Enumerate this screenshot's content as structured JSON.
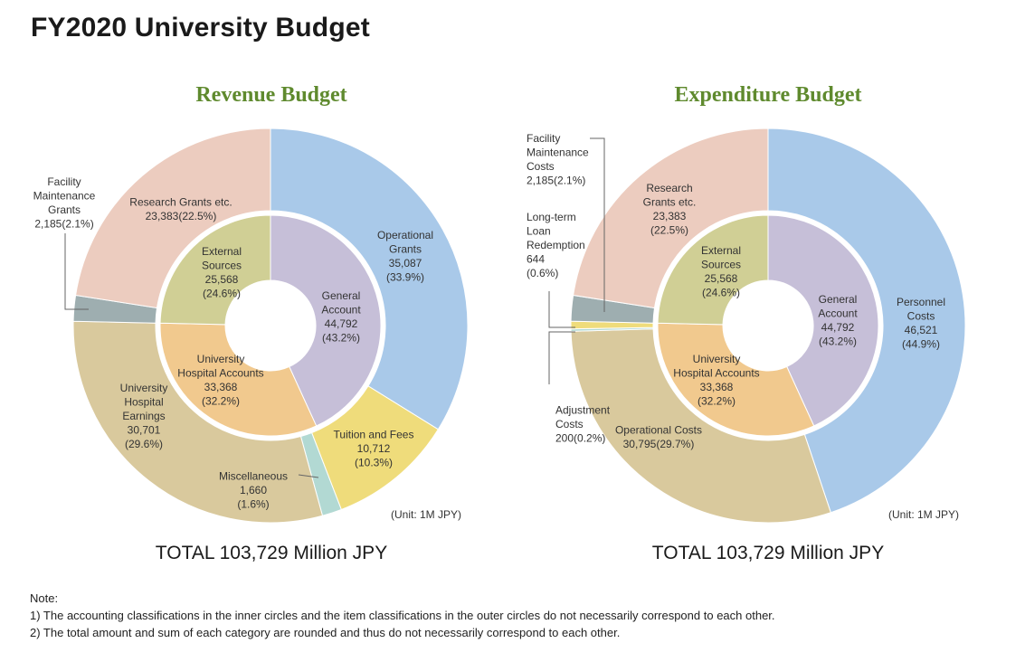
{
  "title": "FY2020 University Budget",
  "unit_label": "(Unit: 1M JPY)",
  "colors": {
    "title_green": "#5f8a2e",
    "outer_blue": "#a9c9e9",
    "outer_pink": "#ecccbf",
    "outer_grey": "#9eaeb0",
    "outer_tan": "#d9c99d",
    "outer_mint": "#b2d9d3",
    "outer_yellow": "#efdc7b",
    "inner_lavender": "#c6bfd8",
    "inner_green": "#d0cf95",
    "inner_orange": "#f1c98e"
  },
  "chart_data": [
    {
      "type": "pie",
      "title": "Revenue Budget",
      "total_label": "TOTAL 103,729 Million JPY",
      "outer_ring": [
        {
          "label": "Operational Grants",
          "value": 35087,
          "percent": 33.9,
          "lines": [
            "Operational",
            "Grants",
            "35,087",
            "(33.9%)"
          ]
        },
        {
          "label": "Tuition and Fees",
          "value": 10712,
          "percent": 10.3,
          "lines": [
            "Tuition and Fees",
            "10,712",
            "(10.3%)"
          ]
        },
        {
          "label": "Miscellaneous",
          "value": 1660,
          "percent": 1.6,
          "lines": [
            "Miscellaneous",
            "1,660",
            "(1.6%)"
          ]
        },
        {
          "label": "University Hospital Earnings",
          "value": 30701,
          "percent": 29.6,
          "lines": [
            "University",
            "Hospital",
            "Earnings",
            "30,701",
            "(29.6%)"
          ]
        },
        {
          "label": "Facility Maintenance Grants",
          "value": 2185,
          "percent": 2.1,
          "lines": [
            "Facility",
            "Maintenance",
            "Grants",
            "2,185(2.1%)"
          ]
        },
        {
          "label": "Research Grants etc.",
          "value": 23383,
          "percent": 22.5,
          "lines": [
            "Research Grants etc.",
            "23,383(22.5%)"
          ]
        }
      ],
      "inner_ring": [
        {
          "label": "General Account",
          "value": 44792,
          "percent": 43.2,
          "lines": [
            "General",
            "Account",
            "44,792",
            "(43.2%)"
          ]
        },
        {
          "label": "University Hospital Accounts",
          "value": 33368,
          "percent": 32.2,
          "lines": [
            "University",
            "Hospital Accounts",
            "33,368",
            "(32.2%)"
          ]
        },
        {
          "label": "External Sources",
          "value": 25568,
          "percent": 24.6,
          "lines": [
            "External",
            "Sources",
            "25,568",
            "(24.6%)"
          ]
        }
      ]
    },
    {
      "type": "pie",
      "title": "Expenditure Budget",
      "total_label": "TOTAL 103,729 Million JPY",
      "outer_ring": [
        {
          "label": "Personnel Costs",
          "value": 46521,
          "percent": 44.9,
          "lines": [
            "Personnel",
            "Costs",
            "46,521",
            "(44.9%)"
          ]
        },
        {
          "label": "Operational Costs",
          "value": 30795,
          "percent": 29.7,
          "lines": [
            "Operational Costs",
            "30,795(29.7%)"
          ]
        },
        {
          "label": "Adjustment Costs",
          "value": 200,
          "percent": 0.2,
          "lines": [
            "Adjustment",
            "Costs",
            "200(0.2%)"
          ]
        },
        {
          "label": "Long-term Loan Redemption",
          "value": 644,
          "percent": 0.6,
          "lines": [
            "Long-term",
            "Loan",
            "Redemption",
            "644",
            "(0.6%)"
          ]
        },
        {
          "label": "Facility Maintenance Costs",
          "value": 2185,
          "percent": 2.1,
          "lines": [
            "Facility",
            "Maintenance",
            "Costs",
            "2,185(2.1%)"
          ]
        },
        {
          "label": "Research Grants etc.",
          "value": 23383,
          "percent": 22.5,
          "lines": [
            "Research",
            "Grants etc.",
            "23,383",
            "(22.5%)"
          ]
        }
      ],
      "inner_ring": [
        {
          "label": "General Account",
          "value": 44792,
          "percent": 43.2,
          "lines": [
            "General",
            "Account",
            "44,792",
            "(43.2%)"
          ]
        },
        {
          "label": "University Hospital Accounts",
          "value": 33368,
          "percent": 32.2,
          "lines": [
            "University",
            "Hospital Accounts",
            "33,368",
            "(32.2%)"
          ]
        },
        {
          "label": "External Sources",
          "value": 25568,
          "percent": 24.6,
          "lines": [
            "External",
            "Sources",
            "25,568",
            "(24.6%)"
          ]
        }
      ]
    }
  ],
  "notes": [
    "Note:",
    "1) The accounting classifications in the inner circles and the item classifications in the outer circles do not necessarily correspond to each other.",
    "2) The total amount and sum of each category are rounded and thus do not necessarily correspond to each other."
  ]
}
